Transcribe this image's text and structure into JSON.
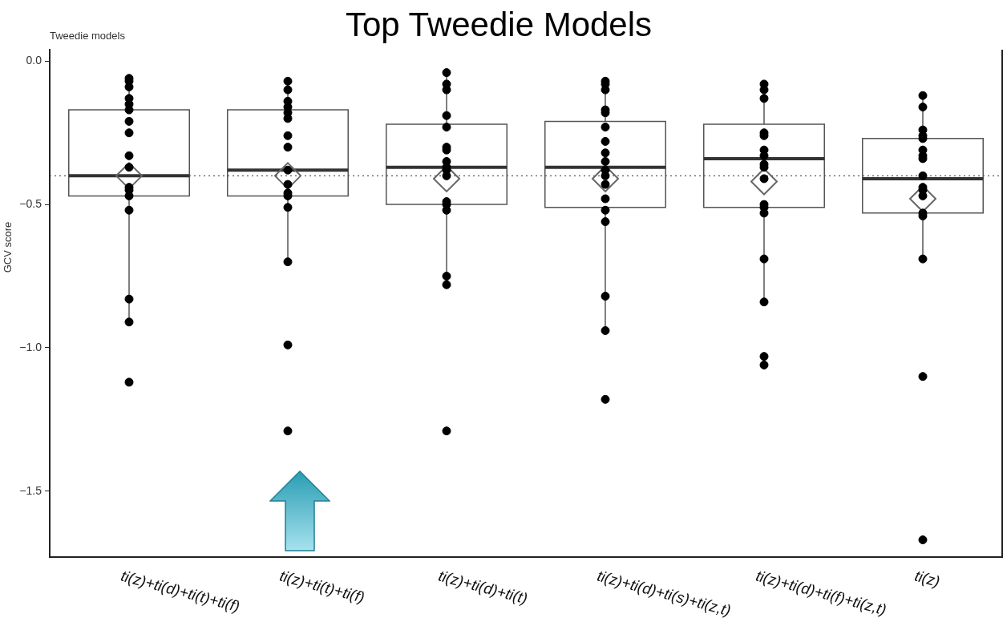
{
  "chart_data": {
    "type": "box",
    "title": "Top Tweedie Models",
    "ylabel": "GCV score",
    "annotations": [
      "Tweedie models"
    ],
    "categories": [
      "ti(z)+ti(d)+ti(t)+ti(f)",
      "ti(z)+ti(t)+ti(f)",
      "ti(z)+ti(d)+ti(t)",
      "ti(z)+ti(d)+ti(s)+ti(z,t)",
      "ti(z)+ti(d)+ti(f)+ti(z,t)",
      "ti(z)"
    ],
    "boxes": [
      {
        "low": -0.92,
        "q1": -0.47,
        "median": -0.4,
        "q3": -0.17,
        "high": -0.06,
        "mean": -0.4
      },
      {
        "low": -0.7,
        "q1": -0.47,
        "median": -0.38,
        "q3": -0.17,
        "high": -0.07,
        "mean": -0.4
      },
      {
        "low": -0.78,
        "q1": -0.5,
        "median": -0.37,
        "q3": -0.22,
        "high": -0.04,
        "mean": -0.41
      },
      {
        "low": -0.94,
        "q1": -0.51,
        "median": -0.37,
        "q3": -0.21,
        "high": -0.07,
        "mean": -0.41
      },
      {
        "low": -0.84,
        "q1": -0.51,
        "median": -0.34,
        "q3": -0.22,
        "high": -0.08,
        "mean": -0.42
      },
      {
        "low": -0.69,
        "q1": -0.53,
        "median": -0.41,
        "q3": -0.27,
        "high": -0.12,
        "mean": -0.48
      }
    ],
    "series": [
      {
        "type": "scatter",
        "color": "#000000",
        "x": [
          "ti(z)+ti(d)+ti(t)+ti(f)",
          "ti(z)+ti(d)+ti(t)+ti(f)",
          "ti(z)+ti(d)+ti(t)+ti(f)",
          "ti(z)+ti(d)+ti(t)+ti(f)",
          "ti(z)+ti(d)+ti(t)+ti(f)",
          "ti(z)+ti(d)+ti(t)+ti(f)",
          "ti(z)+ti(d)+ti(t)+ti(f)",
          "ti(z)+ti(d)+ti(t)+ti(f)",
          "ti(z)+ti(d)+ti(t)+ti(f)",
          "ti(z)+ti(d)+ti(t)+ti(f)",
          "ti(z)+ti(d)+ti(t)+ti(f)",
          "ti(z)+ti(d)+ti(t)+ti(f)",
          "ti(z)+ti(d)+ti(t)+ti(f)",
          "ti(z)+ti(d)+ti(t)+ti(f)",
          "ti(z)+ti(d)+ti(t)+ti(f)",
          "ti(z)+ti(d)+ti(t)+ti(f)",
          "ti(z)+ti(d)+ti(t)+ti(f)",
          "ti(z)+ti(t)+ti(f)",
          "ti(z)+ti(t)+ti(f)",
          "ti(z)+ti(t)+ti(f)",
          "ti(z)+ti(t)+ti(f)",
          "ti(z)+ti(t)+ti(f)",
          "ti(z)+ti(t)+ti(f)",
          "ti(z)+ti(t)+ti(f)",
          "ti(z)+ti(t)+ti(f)",
          "ti(z)+ti(t)+ti(f)",
          "ti(z)+ti(t)+ti(f)",
          "ti(z)+ti(t)+ti(f)",
          "ti(z)+ti(t)+ti(f)",
          "ti(z)+ti(t)+ti(f)",
          "ti(z)+ti(t)+ti(f)",
          "ti(z)+ti(t)+ti(f)",
          "ti(z)+ti(t)+ti(f)",
          "ti(z)+ti(d)+ti(t)",
          "ti(z)+ti(d)+ti(t)",
          "ti(z)+ti(d)+ti(t)",
          "ti(z)+ti(d)+ti(t)",
          "ti(z)+ti(d)+ti(t)",
          "ti(z)+ti(d)+ti(t)",
          "ti(z)+ti(d)+ti(t)",
          "ti(z)+ti(d)+ti(t)",
          "ti(z)+ti(d)+ti(t)",
          "ti(z)+ti(d)+ti(t)",
          "ti(z)+ti(d)+ti(t)",
          "ti(z)+ti(d)+ti(t)",
          "ti(z)+ti(d)+ti(t)",
          "ti(z)+ti(d)+ti(t)",
          "ti(z)+ti(d)+ti(t)",
          "ti(z)+ti(d)+ti(t)",
          "ti(z)+ti(d)+ti(t)",
          "ti(z)+ti(d)+ti(s)+ti(z,t)",
          "ti(z)+ti(d)+ti(s)+ti(z,t)",
          "ti(z)+ti(d)+ti(s)+ti(z,t)",
          "ti(z)+ti(d)+ti(s)+ti(z,t)",
          "ti(z)+ti(d)+ti(s)+ti(z,t)",
          "ti(z)+ti(d)+ti(s)+ti(z,t)",
          "ti(z)+ti(d)+ti(s)+ti(z,t)",
          "ti(z)+ti(d)+ti(s)+ti(z,t)",
          "ti(z)+ti(d)+ti(s)+ti(z,t)",
          "ti(z)+ti(d)+ti(s)+ti(z,t)",
          "ti(z)+ti(d)+ti(s)+ti(z,t)",
          "ti(z)+ti(d)+ti(s)+ti(z,t)",
          "ti(z)+ti(d)+ti(s)+ti(z,t)",
          "ti(z)+ti(d)+ti(s)+ti(z,t)",
          "ti(z)+ti(d)+ti(s)+ti(z,t)",
          "ti(z)+ti(d)+ti(s)+ti(z,t)",
          "ti(z)+ti(d)+ti(s)+ti(z,t)",
          "ti(z)+ti(d)+ti(s)+ti(z,t)",
          "ti(z)+ti(d)+ti(f)+ti(z,t)",
          "ti(z)+ti(d)+ti(f)+ti(z,t)",
          "ti(z)+ti(d)+ti(f)+ti(z,t)",
          "ti(z)+ti(d)+ti(f)+ti(z,t)",
          "ti(z)+ti(d)+ti(f)+ti(z,t)",
          "ti(z)+ti(d)+ti(f)+ti(z,t)",
          "ti(z)+ti(d)+ti(f)+ti(z,t)",
          "ti(z)+ti(d)+ti(f)+ti(z,t)",
          "ti(z)+ti(d)+ti(f)+ti(z,t)",
          "ti(z)+ti(d)+ti(f)+ti(z,t)",
          "ti(z)+ti(d)+ti(f)+ti(z,t)",
          "ti(z)+ti(d)+ti(f)+ti(z,t)",
          "ti(z)+ti(d)+ti(f)+ti(z,t)",
          "ti(z)+ti(d)+ti(f)+ti(z,t)",
          "ti(z)+ti(d)+ti(f)+ti(z,t)",
          "ti(z)+ti(d)+ti(f)+ti(z,t)",
          "ti(z)+ti(d)+ti(f)+ti(z,t)",
          "ti(z)",
          "ti(z)",
          "ti(z)",
          "ti(z)",
          "ti(z)",
          "ti(z)",
          "ti(z)",
          "ti(z)",
          "ti(z)",
          "ti(z)",
          "ti(z)",
          "ti(z)",
          "ti(z)",
          "ti(z)",
          "ti(z)",
          "ti(z)",
          "ti(z)"
        ],
        "values": [
          -0.06,
          -0.07,
          -0.09,
          -0.13,
          -0.15,
          -0.17,
          -0.21,
          -0.25,
          -0.33,
          -0.37,
          -0.44,
          -0.45,
          -0.47,
          -0.52,
          -0.83,
          -0.91,
          -1.12,
          -0.07,
          -0.1,
          -0.14,
          -0.16,
          -0.18,
          -0.2,
          -0.26,
          -0.3,
          -0.38,
          -0.43,
          -0.46,
          -0.47,
          -0.51,
          -0.7,
          -0.99,
          -1.29,
          -0.04,
          -0.08,
          -0.1,
          -0.19,
          -0.23,
          -0.3,
          -0.31,
          -0.35,
          -0.37,
          -0.38,
          -0.4,
          -0.49,
          -0.5,
          -0.52,
          -0.75,
          -0.78,
          -1.29,
          -0.07,
          -0.08,
          -0.1,
          -0.17,
          -0.18,
          -0.23,
          -0.28,
          -0.32,
          -0.35,
          -0.38,
          -0.4,
          -0.43,
          -0.48,
          -0.52,
          -0.56,
          -0.82,
          -0.94,
          -1.18,
          -0.08,
          -0.1,
          -0.13,
          -0.25,
          -0.26,
          -0.31,
          -0.33,
          -0.36,
          -0.37,
          -0.41,
          -0.5,
          -0.51,
          -0.53,
          -0.69,
          -0.84,
          -1.03,
          -1.06,
          -0.12,
          -0.16,
          -0.24,
          -0.26,
          -0.27,
          -0.31,
          -0.33,
          -0.34,
          -0.4,
          -0.44,
          -0.45,
          -0.47,
          -0.53,
          -0.54,
          -0.69,
          -1.1,
          -1.67
        ]
      }
    ],
    "ylim": [
      -1.73,
      0.04
    ],
    "yticks": [
      {
        "value": 0,
        "label": "0.0"
      },
      {
        "value": -0.5,
        "label": "−0.5"
      },
      {
        "value": -1,
        "label": "−1.0"
      },
      {
        "value": -1.5,
        "label": "−1.5"
      }
    ],
    "ref_lines": [
      {
        "axis": "y",
        "value": -0.4,
        "line_style": "dotted",
        "color": "#555555"
      }
    ],
    "marker": "circle",
    "grid": false,
    "legend": false
  }
}
